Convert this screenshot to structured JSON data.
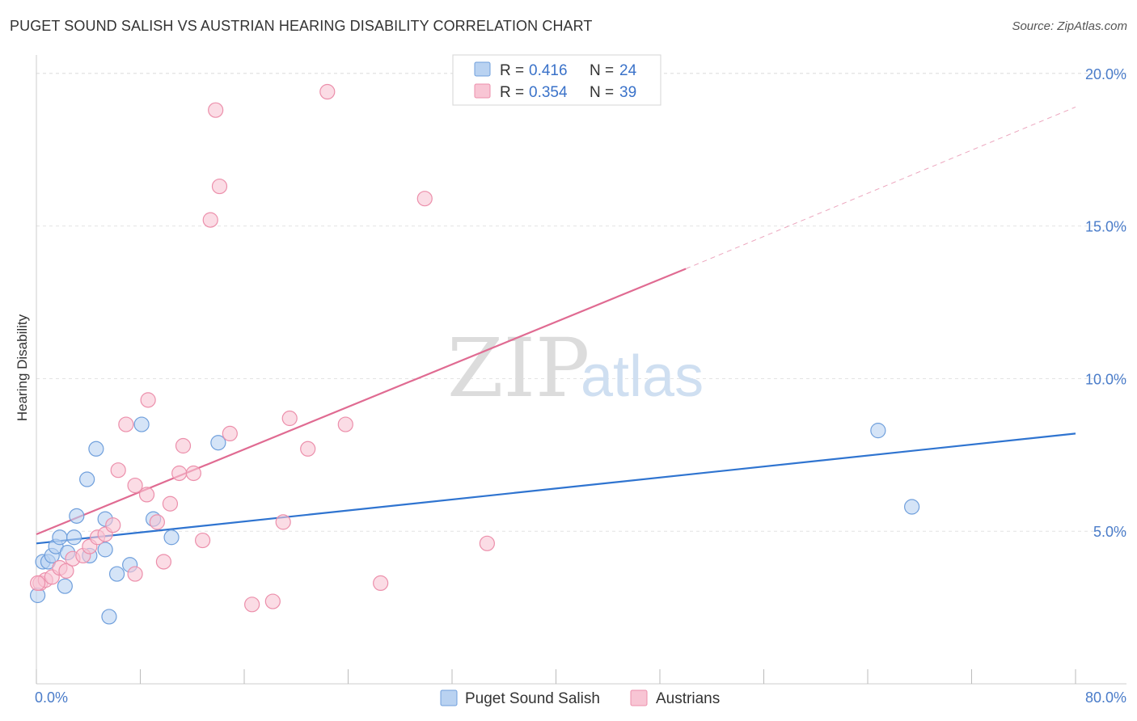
{
  "header": {
    "title": "PUGET SOUND SALISH VS AUSTRIAN HEARING DISABILITY CORRELATION CHART",
    "source": "Source: ZipAtlas.com"
  },
  "watermark": {
    "zip": "ZIP",
    "atlas": "atlas"
  },
  "colors": {
    "blue_fill": "#b9d2f1",
    "blue_stroke": "#6f9fdc",
    "blue_line": "#2f74d0",
    "pink_fill": "#f8c5d4",
    "pink_stroke": "#ec8fab",
    "pink_line": "#e06b92",
    "grid": "#e3e3e3",
    "axis_text": "#4a7cc9"
  },
  "chart_data": {
    "type": "scatter",
    "title": "PUGET SOUND SALISH VS AUSTRIAN HEARING DISABILITY CORRELATION CHART",
    "xlabel": "",
    "ylabel": "Hearing Disability",
    "xlim": [
      0,
      80
    ],
    "ylim": [
      0,
      20.5
    ],
    "x_tick_labels": [
      "0.0%",
      "80.0%"
    ],
    "y_ticks": [
      5,
      10,
      15,
      20
    ],
    "y_tick_labels": [
      "5.0%",
      "10.0%",
      "15.0%",
      "20.0%"
    ],
    "grid": true,
    "legend": {
      "placement": "top-center",
      "entries": [
        {
          "r_label": "R =",
          "r_value": "0.416",
          "n_label": "N =",
          "n_value": "24"
        },
        {
          "r_label": "R =",
          "r_value": "0.354",
          "n_label": "N =",
          "n_value": "39"
        }
      ]
    },
    "series": [
      {
        "name": "Puget Sound Salish",
        "points": [
          [
            0.1,
            2.9
          ],
          [
            0.5,
            4.0
          ],
          [
            0.9,
            4.0
          ],
          [
            1.2,
            4.2
          ],
          [
            1.5,
            4.5
          ],
          [
            1.8,
            4.8
          ],
          [
            2.2,
            3.2
          ],
          [
            2.4,
            4.3
          ],
          [
            2.9,
            4.8
          ],
          [
            3.1,
            5.5
          ],
          [
            3.9,
            6.7
          ],
          [
            4.1,
            4.2
          ],
          [
            4.6,
            7.7
          ],
          [
            5.3,
            4.4
          ],
          [
            5.3,
            5.4
          ],
          [
            5.6,
            2.2
          ],
          [
            6.2,
            3.6
          ],
          [
            7.2,
            3.9
          ],
          [
            8.1,
            8.5
          ],
          [
            9.0,
            5.4
          ],
          [
            10.4,
            4.8
          ],
          [
            14.0,
            7.9
          ],
          [
            64.8,
            8.3
          ],
          [
            67.4,
            5.8
          ]
        ],
        "trend": {
          "x": [
            0,
            80
          ],
          "y": [
            4.6,
            8.2
          ]
        }
      },
      {
        "name": "Austrians",
        "points": [
          [
            0.3,
            3.3
          ],
          [
            0.7,
            3.4
          ],
          [
            1.2,
            3.5
          ],
          [
            1.8,
            3.8
          ],
          [
            2.3,
            3.7
          ],
          [
            2.8,
            4.1
          ],
          [
            3.6,
            4.2
          ],
          [
            4.1,
            4.5
          ],
          [
            4.7,
            4.8
          ],
          [
            5.3,
            4.9
          ],
          [
            5.9,
            5.2
          ],
          [
            6.3,
            7.0
          ],
          [
            6.9,
            8.5
          ],
          [
            7.6,
            6.5
          ],
          [
            7.6,
            3.6
          ],
          [
            8.5,
            6.2
          ],
          [
            8.6,
            9.3
          ],
          [
            9.3,
            5.3
          ],
          [
            9.8,
            4.0
          ],
          [
            10.3,
            5.9
          ],
          [
            11.0,
            6.9
          ],
          [
            11.3,
            7.8
          ],
          [
            12.1,
            6.9
          ],
          [
            12.8,
            4.7
          ],
          [
            13.4,
            15.2
          ],
          [
            13.8,
            18.8
          ],
          [
            14.1,
            16.3
          ],
          [
            14.9,
            8.2
          ],
          [
            16.6,
            2.6
          ],
          [
            18.2,
            2.7
          ],
          [
            19.0,
            5.3
          ],
          [
            19.5,
            8.7
          ],
          [
            20.9,
            7.7
          ],
          [
            22.4,
            19.4
          ],
          [
            23.8,
            8.5
          ],
          [
            26.5,
            3.3
          ],
          [
            29.9,
            15.9
          ],
          [
            34.7,
            4.6
          ],
          [
            0.1,
            3.3
          ]
        ],
        "trend": {
          "x": [
            0,
            50
          ],
          "y": [
            4.9,
            13.6
          ]
        },
        "trend_extension": {
          "x": [
            50,
            80
          ],
          "y": [
            13.6,
            18.9
          ]
        }
      }
    ]
  },
  "bottom_legend": {
    "items": [
      {
        "label": "Puget Sound Salish"
      },
      {
        "label": "Austrians"
      }
    ]
  }
}
